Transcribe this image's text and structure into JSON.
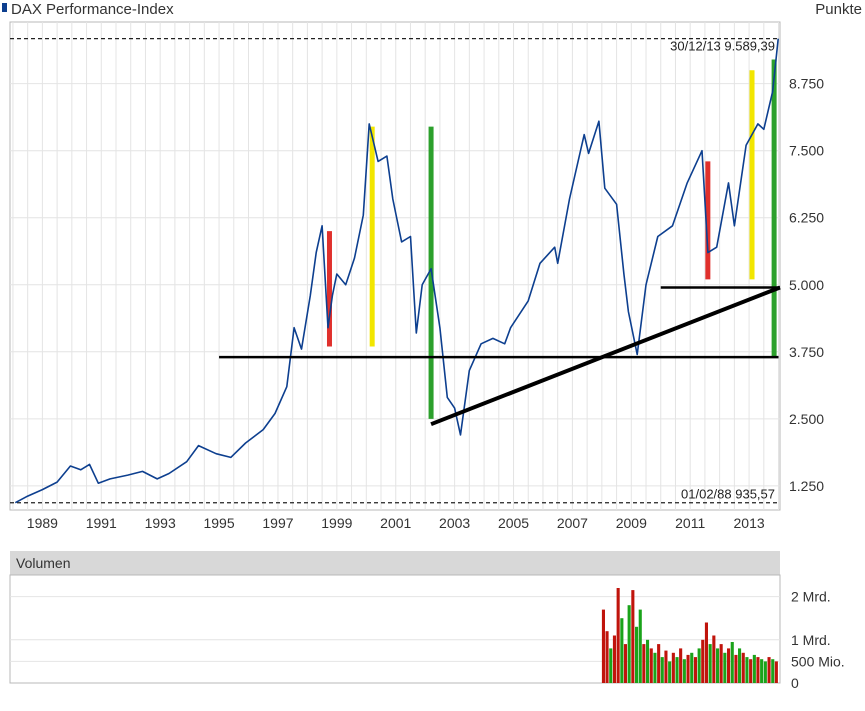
{
  "chart_data": {
    "type": "line",
    "title": "DAX Performance-Index",
    "unit_label": "Punkte",
    "x_range": [
      1987.9,
      2014.05
    ],
    "y_range": [
      800,
      9900
    ],
    "y_ticks": [
      {
        "value": 1250,
        "label": "1.250"
      },
      {
        "value": 2500,
        "label": "2.500"
      },
      {
        "value": 3750,
        "label": "3.750"
      },
      {
        "value": 5000,
        "label": "5.000"
      },
      {
        "value": 6250,
        "label": "6.250"
      },
      {
        "value": 7500,
        "label": "7.500"
      },
      {
        "value": 8750,
        "label": "8.750"
      }
    ],
    "x_ticks": [
      {
        "value": 1989,
        "label": "1989"
      },
      {
        "value": 1991,
        "label": "1991"
      },
      {
        "value": 1993,
        "label": "1993"
      },
      {
        "value": 1995,
        "label": "1995"
      },
      {
        "value": 1997,
        "label": "1997"
      },
      {
        "value": 1999,
        "label": "1999"
      },
      {
        "value": 2001,
        "label": "2001"
      },
      {
        "value": 2003,
        "label": "2003"
      },
      {
        "value": 2005,
        "label": "2005"
      },
      {
        "value": 2007,
        "label": "2007"
      },
      {
        "value": 2009,
        "label": "2009"
      },
      {
        "value": 2011,
        "label": "2011"
      },
      {
        "value": 2013,
        "label": "2013"
      }
    ],
    "grid": true,
    "series": [
      {
        "name": "DAX Performance-Index",
        "color": "#0d3f8f",
        "points": [
          [
            1988.08,
            936
          ],
          [
            1988.5,
            1060
          ],
          [
            1989.0,
            1180
          ],
          [
            1989.5,
            1320
          ],
          [
            1989.95,
            1620
          ],
          [
            1990.3,
            1550
          ],
          [
            1990.6,
            1650
          ],
          [
            1990.9,
            1300
          ],
          [
            1991.3,
            1380
          ],
          [
            1991.9,
            1450
          ],
          [
            1992.4,
            1520
          ],
          [
            1992.9,
            1380
          ],
          [
            1993.3,
            1480
          ],
          [
            1993.9,
            1700
          ],
          [
            1994.3,
            2000
          ],
          [
            1994.9,
            1850
          ],
          [
            1995.4,
            1780
          ],
          [
            1995.9,
            2050
          ],
          [
            1996.5,
            2300
          ],
          [
            1996.9,
            2600
          ],
          [
            1997.3,
            3100
          ],
          [
            1997.55,
            4200
          ],
          [
            1997.8,
            3800
          ],
          [
            1998.1,
            4800
          ],
          [
            1998.3,
            5600
          ],
          [
            1998.5,
            6100
          ],
          [
            1998.7,
            4200
          ],
          [
            1998.85,
            4800
          ],
          [
            1999.0,
            5200
          ],
          [
            1999.3,
            5000
          ],
          [
            1999.6,
            5500
          ],
          [
            1999.9,
            6300
          ],
          [
            2000.1,
            8000
          ],
          [
            2000.4,
            7300
          ],
          [
            2000.7,
            7400
          ],
          [
            2000.9,
            6600
          ],
          [
            2001.2,
            5800
          ],
          [
            2001.5,
            5900
          ],
          [
            2001.7,
            4100
          ],
          [
            2001.9,
            5000
          ],
          [
            2002.2,
            5300
          ],
          [
            2002.5,
            4200
          ],
          [
            2002.75,
            2900
          ],
          [
            2003.0,
            2700
          ],
          [
            2003.2,
            2200
          ],
          [
            2003.5,
            3400
          ],
          [
            2003.9,
            3900
          ],
          [
            2004.3,
            4000
          ],
          [
            2004.7,
            3900
          ],
          [
            2004.9,
            4200
          ],
          [
            2005.5,
            4700
          ],
          [
            2005.9,
            5400
          ],
          [
            2006.4,
            5700
          ],
          [
            2006.5,
            5400
          ],
          [
            2006.9,
            6600
          ],
          [
            2007.4,
            7800
          ],
          [
            2007.55,
            7450
          ],
          [
            2007.9,
            8050
          ],
          [
            2008.1,
            6800
          ],
          [
            2008.5,
            6500
          ],
          [
            2008.75,
            5200
          ],
          [
            2008.9,
            4500
          ],
          [
            2009.2,
            3700
          ],
          [
            2009.5,
            5000
          ],
          [
            2009.9,
            5900
          ],
          [
            2010.4,
            6100
          ],
          [
            2010.9,
            6900
          ],
          [
            2011.4,
            7500
          ],
          [
            2011.6,
            5600
          ],
          [
            2011.9,
            5700
          ],
          [
            2012.3,
            6900
          ],
          [
            2012.5,
            6100
          ],
          [
            2012.9,
            7600
          ],
          [
            2013.3,
            8000
          ],
          [
            2013.5,
            7900
          ],
          [
            2013.8,
            8600
          ],
          [
            2013.99,
            9589
          ]
        ]
      }
    ],
    "reference_lines": [
      {
        "value": 9589.39,
        "style": "dashed",
        "label": "30/12/13   9.589,39"
      },
      {
        "value": 935.57,
        "style": "dashed",
        "label": "01/02/88   935,57"
      }
    ],
    "annotations": {
      "horizontal_lines": [
        {
          "x": [
            1995.0,
            2014.0
          ],
          "y": 3650
        },
        {
          "x": [
            2010.0,
            2014.05
          ],
          "y": 4950
        }
      ],
      "trend_line": {
        "x": [
          2002.2,
          2014.05
        ],
        "y": [
          2400,
          4950
        ]
      },
      "bars": [
        {
          "color": "#e0302c",
          "x": 1998.75,
          "y": [
            3850,
            6000
          ]
        },
        {
          "color": "#f2e600",
          "x": 2000.2,
          "y": [
            3850,
            7950
          ]
        },
        {
          "color": "#2ca02c",
          "x": 2002.2,
          "y": [
            2500,
            7950
          ]
        },
        {
          "color": "#e0302c",
          "x": 2011.6,
          "y": [
            5100,
            7300
          ]
        },
        {
          "color": "#f2e600",
          "x": 2013.1,
          "y": [
            5100,
            9000
          ]
        },
        {
          "color": "#2ca02c",
          "x": 2013.85,
          "y": [
            3650,
            9200
          ]
        }
      ]
    },
    "volume": {
      "title": "Volumen",
      "y_range": [
        0,
        2500
      ],
      "tick_labels": [
        {
          "value": 2000,
          "label": "2 Mrd."
        },
        {
          "value": 1000,
          "label": "1 Mrd."
        },
        {
          "value": 500,
          "label": "500 Mio."
        },
        {
          "value": 0,
          "label": "0"
        }
      ],
      "up_color": "#1aa31a",
      "down_color": "#c0140c",
      "x_start": 2008.0,
      "x_end": 2014.0,
      "values": [
        {
          "v": 1700,
          "up": false
        },
        {
          "v": 1200,
          "up": false
        },
        {
          "v": 800,
          "up": true
        },
        {
          "v": 1100,
          "up": false
        },
        {
          "v": 2200,
          "up": false
        },
        {
          "v": 1500,
          "up": true
        },
        {
          "v": 900,
          "up": false
        },
        {
          "v": 1800,
          "up": true
        },
        {
          "v": 2150,
          "up": false
        },
        {
          "v": 1300,
          "up": true
        },
        {
          "v": 1700,
          "up": true
        },
        {
          "v": 900,
          "up": false
        },
        {
          "v": 1000,
          "up": true
        },
        {
          "v": 800,
          "up": false
        },
        {
          "v": 700,
          "up": true
        },
        {
          "v": 900,
          "up": false
        },
        {
          "v": 600,
          "up": true
        },
        {
          "v": 750,
          "up": false
        },
        {
          "v": 500,
          "up": true
        },
        {
          "v": 700,
          "up": false
        },
        {
          "v": 600,
          "up": true
        },
        {
          "v": 800,
          "up": false
        },
        {
          "v": 550,
          "up": true
        },
        {
          "v": 650,
          "up": false
        },
        {
          "v": 700,
          "up": true
        },
        {
          "v": 600,
          "up": false
        },
        {
          "v": 800,
          "up": true
        },
        {
          "v": 1000,
          "up": false
        },
        {
          "v": 1400,
          "up": false
        },
        {
          "v": 900,
          "up": true
        },
        {
          "v": 1100,
          "up": false
        },
        {
          "v": 800,
          "up": true
        },
        {
          "v": 900,
          "up": false
        },
        {
          "v": 700,
          "up": true
        },
        {
          "v": 800,
          "up": false
        },
        {
          "v": 950,
          "up": true
        },
        {
          "v": 650,
          "up": false
        },
        {
          "v": 800,
          "up": true
        },
        {
          "v": 700,
          "up": false
        },
        {
          "v": 600,
          "up": true
        },
        {
          "v": 550,
          "up": false
        },
        {
          "v": 650,
          "up": true
        },
        {
          "v": 600,
          "up": false
        },
        {
          "v": 550,
          "up": true
        },
        {
          "v": 500,
          "up": true
        },
        {
          "v": 600,
          "up": false
        },
        {
          "v": 550,
          "up": true
        },
        {
          "v": 500,
          "up": false
        }
      ]
    }
  }
}
